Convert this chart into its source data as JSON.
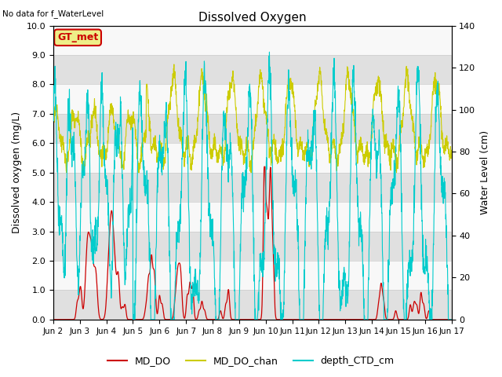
{
  "title": "Dissolved Oxygen",
  "top_left_text": "No data for f_WaterLevel",
  "annotation_text": "GT_met",
  "ylabel_left": "Dissolved oxygen (mg/L)",
  "ylabel_right": "Water Level (cm)",
  "ylim_left": [
    0.0,
    10.0
  ],
  "ylim_right": [
    0,
    140
  ],
  "yticks_left": [
    0.0,
    1.0,
    2.0,
    3.0,
    4.0,
    5.0,
    6.0,
    7.0,
    8.0,
    9.0,
    10.0
  ],
  "yticks_right": [
    0,
    20,
    40,
    60,
    80,
    100,
    120,
    140
  ],
  "xtick_labels": [
    "Jun 2",
    "Jun 3",
    "Jun 4",
    "Jun 5",
    "Jun 6",
    "Jun 7",
    "Jun 8",
    "Jun 9",
    "Jun 10",
    "Jun 11",
    "Jun 12",
    "Jun 13",
    "Jun 14",
    "Jun 15",
    "Jun 16",
    "Jun 17"
  ],
  "color_MD_DO": "#cc0000",
  "color_MD_DO_chan": "#cccc00",
  "color_depth_CTD_cm": "#00cccc",
  "legend_labels": [
    "MD_DO",
    "MD_DO_chan",
    "depth_CTD_cm"
  ],
  "annotation_bg": "#eeee88",
  "annotation_border": "#cc0000",
  "gray_band_color": "#e0e0e0",
  "white_band_color": "#f8f8f8",
  "grid_color": "#cccccc"
}
